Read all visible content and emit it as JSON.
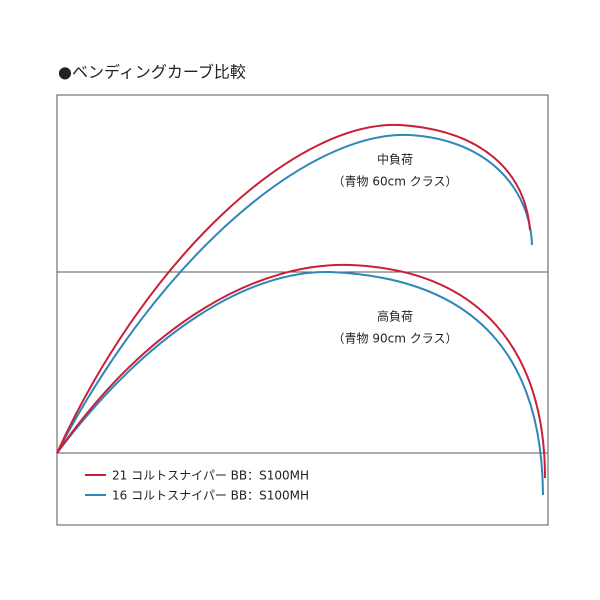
{
  "title": "●ベンディングカーブ比較",
  "panels": [
    {
      "label": "中負荷",
      "sublabel": "（青物 60cm クラス）"
    },
    {
      "label": "高負荷",
      "sublabel": "（青物 90cm クラス）"
    }
  ],
  "legend": [
    {
      "name": "21 コルトスナイパー BB：S100MH",
      "color": "#c8203a"
    },
    {
      "name": "16 コルトスナイパー BB：S100MH",
      "color": "#2f86b8"
    }
  ]
}
